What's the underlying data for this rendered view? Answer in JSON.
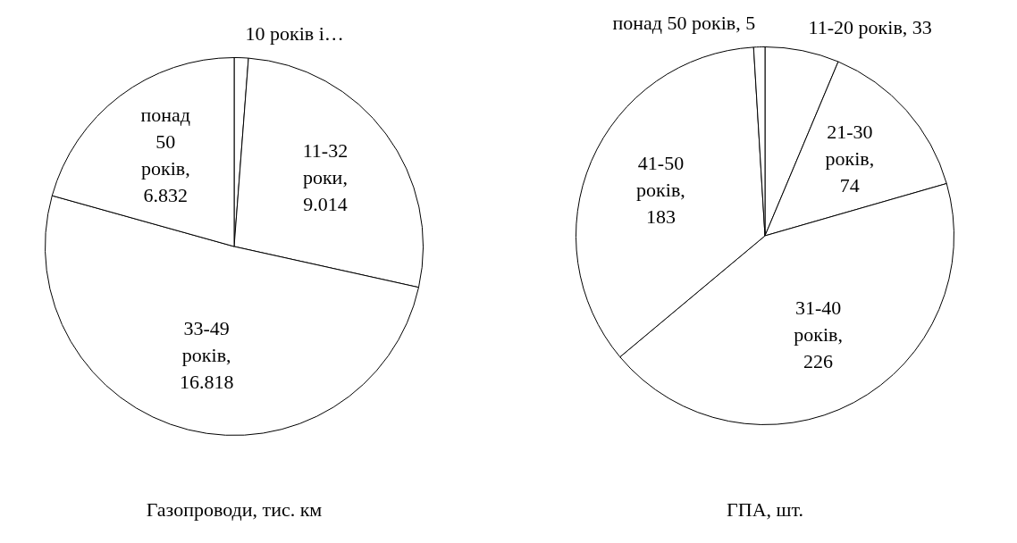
{
  "chart_data": [
    {
      "type": "pie",
      "title": "Газопроводи, тис. км",
      "categories": [
        "10 років і…",
        "11-32 роки",
        "33-49 років",
        "понад 50 років"
      ],
      "values": [
        0.4,
        9.014,
        16.818,
        6.832
      ],
      "value_labels": [
        null,
        ", 9.014",
        ", 16.818",
        ", 6.832"
      ],
      "colors": [
        "#ffffff",
        "#ffffff",
        "#ffffff",
        "#ffffff"
      ]
    },
    {
      "type": "pie",
      "title": "ГПА, шт.",
      "categories": [
        "11-20 років",
        "21-30 років",
        "31-40 років",
        "41-50 років",
        "понад 50 років"
      ],
      "values": [
        33,
        74,
        226,
        183,
        5
      ],
      "value_labels": [
        ", 33",
        ", 74",
        ", 226",
        ", 183",
        ", 5"
      ],
      "colors": [
        "#ffffff",
        "#ffffff",
        "#ffffff",
        "#ffffff",
        "#ffffff"
      ]
    }
  ]
}
